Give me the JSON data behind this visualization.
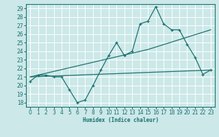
{
  "xlabel": "Humidex (Indice chaleur)",
  "xlim": [
    -0.5,
    23.5
  ],
  "ylim": [
    17.5,
    29.5
  ],
  "xticks": [
    0,
    1,
    2,
    3,
    4,
    5,
    6,
    7,
    8,
    9,
    10,
    11,
    12,
    13,
    14,
    15,
    16,
    17,
    18,
    19,
    20,
    21,
    22,
    23
  ],
  "yticks": [
    18,
    19,
    20,
    21,
    22,
    23,
    24,
    25,
    26,
    27,
    28,
    29
  ],
  "bg_color": "#cce8e8",
  "line_color": "#1a7070",
  "grid_color": "#ffffff",
  "line1_x": [
    0,
    1,
    2,
    3,
    4,
    5,
    6,
    7,
    8,
    9,
    10,
    11,
    12,
    13,
    14,
    15,
    16,
    17,
    18,
    19,
    20,
    21,
    22,
    23
  ],
  "line1_y": [
    20.5,
    21.2,
    21.2,
    21.0,
    21.0,
    19.5,
    18.0,
    18.3,
    20.0,
    21.8,
    23.5,
    25.0,
    23.5,
    24.0,
    27.2,
    27.5,
    29.2,
    27.2,
    26.5,
    26.5,
    24.8,
    23.3,
    21.3,
    21.8
  ],
  "line2_x": [
    0,
    23
  ],
  "line2_y": [
    21.0,
    21.8
  ],
  "line3_x": [
    0,
    15,
    23
  ],
  "line3_y": [
    21.0,
    24.2,
    26.5
  ]
}
